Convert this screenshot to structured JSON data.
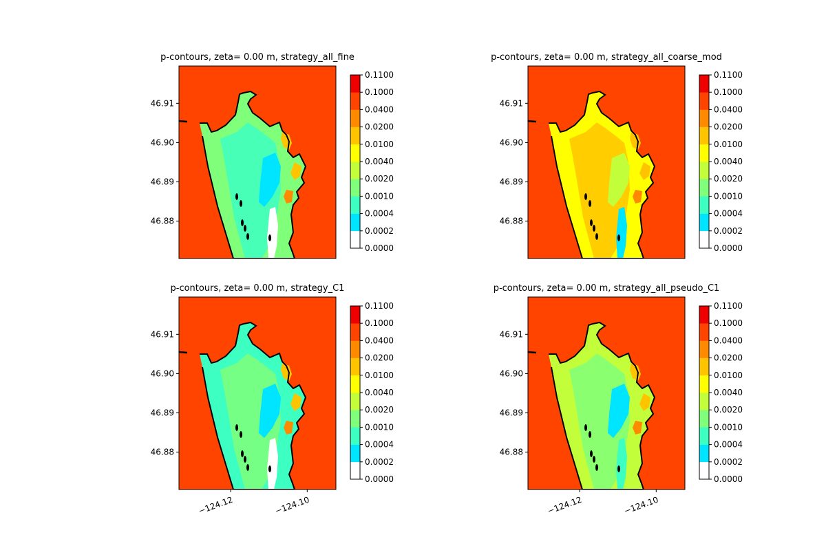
{
  "figure": {
    "background": "#ffffff"
  },
  "colorbar": {
    "ticks": [
      "0.0000",
      "0.0002",
      "0.0004",
      "0.0010",
      "0.0020",
      "0.0040",
      "0.0100",
      "0.0200",
      "0.0400",
      "0.1000",
      "0.1100"
    ],
    "colors": [
      "#ffffff",
      "#00e5ff",
      "#3dffc2",
      "#80ff7a",
      "#c2ff3a",
      "#ffff00",
      "#ffc400",
      "#ff8a00",
      "#ff4400",
      "#ee0000"
    ]
  },
  "chart_data": [
    {
      "type": "heatmap",
      "title": "p-contours, zeta= 0.00 m, strategy_all_fine",
      "xticks": [],
      "yticks": [
        "46.91",
        "46.90",
        "46.89",
        "46.88"
      ],
      "x_range": [
        -124.1335,
        -124.0925
      ],
      "y_range": [
        46.8705,
        46.9195
      ],
      "y_tick_values": [
        46.91,
        46.9,
        46.89,
        46.88
      ],
      "levels": [
        0.0,
        0.0002,
        0.0004,
        0.001,
        0.002,
        0.004,
        0.01,
        0.02,
        0.04,
        0.1,
        0.11
      ],
      "background_level": 0.04,
      "coastline": "black",
      "dominant_interior_level": "0.0010-0.0020"
    },
    {
      "type": "heatmap",
      "title": "p-contours, zeta= 0.00 m, strategy_all_coarse_mod",
      "xticks": [],
      "yticks": [
        "46.91",
        "46.90",
        "46.89",
        "46.88"
      ],
      "x_range": [
        -124.1335,
        -124.0925
      ],
      "y_range": [
        46.8705,
        46.9195
      ],
      "y_tick_values": [
        46.91,
        46.9,
        46.89,
        46.88
      ],
      "levels": [
        0.0,
        0.0002,
        0.0004,
        0.001,
        0.002,
        0.004,
        0.01,
        0.02,
        0.04,
        0.1,
        0.11
      ],
      "background_level": 0.04,
      "coastline": "black",
      "dominant_interior_level": "0.0040-0.0100"
    },
    {
      "type": "heatmap",
      "title": "p-contours, zeta= 0.00 m, strategy_C1",
      "xticks": [
        "−124.12",
        "−124.10"
      ],
      "yticks": [
        "46.91",
        "46.90",
        "46.89",
        "46.88"
      ],
      "x_range": [
        -124.1335,
        -124.0925
      ],
      "y_range": [
        46.8705,
        46.9195
      ],
      "x_tick_values": [
        -124.12,
        -124.1
      ],
      "y_tick_values": [
        46.91,
        46.9,
        46.89,
        46.88
      ],
      "levels": [
        0.0,
        0.0002,
        0.0004,
        0.001,
        0.002,
        0.004,
        0.01,
        0.02,
        0.04,
        0.1,
        0.11
      ],
      "background_level": 0.04,
      "coastline": "black",
      "dominant_interior_level": "0.0004-0.0010"
    },
    {
      "type": "heatmap",
      "title": "p-contours, zeta= 0.00 m, strategy_all_pseudo_C1",
      "xticks": [
        "−124.12",
        "−124.10"
      ],
      "yticks": [
        "46.91",
        "46.90",
        "46.89",
        "46.88"
      ],
      "x_range": [
        -124.1335,
        -124.0925
      ],
      "y_range": [
        46.8705,
        46.9195
      ],
      "x_tick_values": [
        -124.12,
        -124.1
      ],
      "y_tick_values": [
        46.91,
        46.9,
        46.89,
        46.88
      ],
      "levels": [
        0.0,
        0.0002,
        0.0004,
        0.001,
        0.002,
        0.004,
        0.01,
        0.02,
        0.04,
        0.1,
        0.11
      ],
      "background_level": 0.04,
      "coastline": "black",
      "dominant_interior_level": "0.0020-0.0040"
    }
  ]
}
